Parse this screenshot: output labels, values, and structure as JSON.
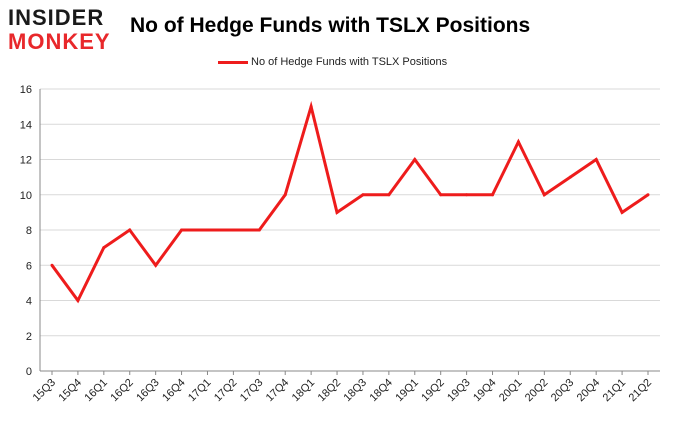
{
  "logo": {
    "line1": "INSIDER",
    "line2": "MONKEY"
  },
  "colors": {
    "series": "#ee1c1c",
    "grid": "#d9d9d9",
    "axis": "#888888",
    "logo_red": "#e8282b"
  },
  "chart_data": {
    "type": "line",
    "title": "No of Hedge Funds with TSLX Positions",
    "xlabel": "",
    "ylabel": "",
    "categories": [
      "15Q3",
      "15Q4",
      "16Q1",
      "16Q2",
      "16Q3",
      "16Q4",
      "17Q1",
      "17Q2",
      "17Q3",
      "17Q4",
      "18Q1",
      "18Q2",
      "18Q3",
      "18Q4",
      "19Q1",
      "19Q2",
      "19Q3",
      "19Q4",
      "20Q1",
      "20Q2",
      "20Q3",
      "20Q4",
      "21Q1",
      "21Q2"
    ],
    "series": [
      {
        "name": "No of Hedge Funds with TSLX Positions",
        "values": [
          6,
          4,
          7,
          8,
          6,
          8,
          8,
          8,
          8,
          10,
          15,
          9,
          10,
          10,
          12,
          10,
          10,
          10,
          13,
          10,
          11,
          12,
          9,
          10
        ]
      }
    ],
    "ylim": [
      0,
      16
    ],
    "yticks": [
      0,
      2,
      4,
      6,
      8,
      10,
      12,
      14,
      16
    ],
    "grid": "horizontal",
    "legend": "top-center"
  }
}
